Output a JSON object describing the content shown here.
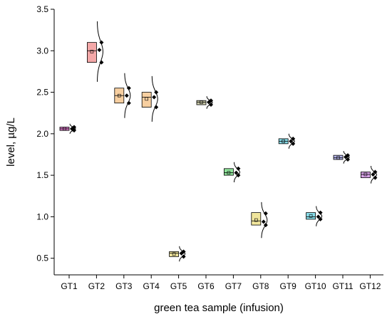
{
  "chart_data": {
    "type": "box",
    "title": "",
    "xlabel": "green tea sample (infusion)",
    "ylabel": "level, µg/L",
    "ylim": [
      0.3,
      3.5
    ],
    "yticks": [
      "0.5",
      "1.0",
      "1.5",
      "2.0",
      "2.5",
      "3.0",
      "3.5"
    ],
    "ytick_values": [
      0.5,
      1.0,
      1.5,
      2.0,
      2.5,
      3.0,
      3.5
    ],
    "grid": false,
    "legend": "none",
    "categories": [
      "GT1",
      "GT2",
      "GT3",
      "GT4",
      "GT5",
      "GT6",
      "GT7",
      "GT8",
      "GT9",
      "GT10",
      "GT11",
      "GT12"
    ],
    "series": [
      {
        "category": "GT1",
        "color": "#e27fd0",
        "q1": 2.04,
        "median": 2.06,
        "q3": 2.08,
        "mean": 2.06,
        "points": [
          2.04,
          2.06,
          2.08
        ]
      },
      {
        "category": "GT2",
        "color": "#f4a8a8",
        "q1": 2.86,
        "median": 3.0,
        "q3": 3.1,
        "mean": 2.99,
        "points": [
          2.86,
          3.01,
          3.1
        ]
      },
      {
        "category": "GT3",
        "color": "#f7cfa0",
        "q1": 2.37,
        "median": 2.46,
        "q3": 2.55,
        "mean": 2.46,
        "points": [
          2.37,
          2.46,
          2.55
        ]
      },
      {
        "category": "GT4",
        "color": "#f7cfa0",
        "q1": 2.32,
        "median": 2.44,
        "q3": 2.5,
        "mean": 2.42,
        "points": [
          2.32,
          2.44,
          2.5
        ]
      },
      {
        "category": "GT5",
        "color": "#f0e59c",
        "q1": 0.52,
        "median": 0.56,
        "q3": 0.58,
        "mean": 0.55,
        "points": [
          0.52,
          0.56,
          0.58
        ]
      },
      {
        "category": "GT6",
        "color": "#c9c9a8",
        "q1": 2.35,
        "median": 2.38,
        "q3": 2.4,
        "mean": 2.38,
        "points": [
          2.35,
          2.38,
          2.4
        ]
      },
      {
        "category": "GT7",
        "color": "#8fe39a",
        "q1": 1.5,
        "median": 1.53,
        "q3": 1.58,
        "mean": 1.53,
        "points": [
          1.5,
          1.53,
          1.58
        ]
      },
      {
        "category": "GT8",
        "color": "#f0e59c",
        "q1": 0.9,
        "median": 0.95,
        "q3": 1.05,
        "mean": 0.96,
        "points": [
          0.9,
          0.94,
          1.04
        ]
      },
      {
        "category": "GT9",
        "color": "#88dce8",
        "q1": 1.88,
        "median": 1.91,
        "q3": 1.94,
        "mean": 1.91,
        "points": [
          1.88,
          1.91,
          1.94
        ]
      },
      {
        "category": "GT10",
        "color": "#88dce8",
        "q1": 0.97,
        "median": 1.0,
        "q3": 1.05,
        "mean": 1.01,
        "points": [
          0.97,
          1.0,
          1.05
        ]
      },
      {
        "category": "GT11",
        "color": "#b6b6ec",
        "q1": 1.69,
        "median": 1.71,
        "q3": 1.74,
        "mean": 1.71,
        "points": [
          1.69,
          1.72,
          1.74
        ]
      },
      {
        "category": "GT12",
        "color": "#d9a4e8",
        "q1": 1.47,
        "median": 1.51,
        "q3": 1.54,
        "mean": 1.51,
        "points": [
          1.47,
          1.51,
          1.54
        ]
      }
    ]
  }
}
